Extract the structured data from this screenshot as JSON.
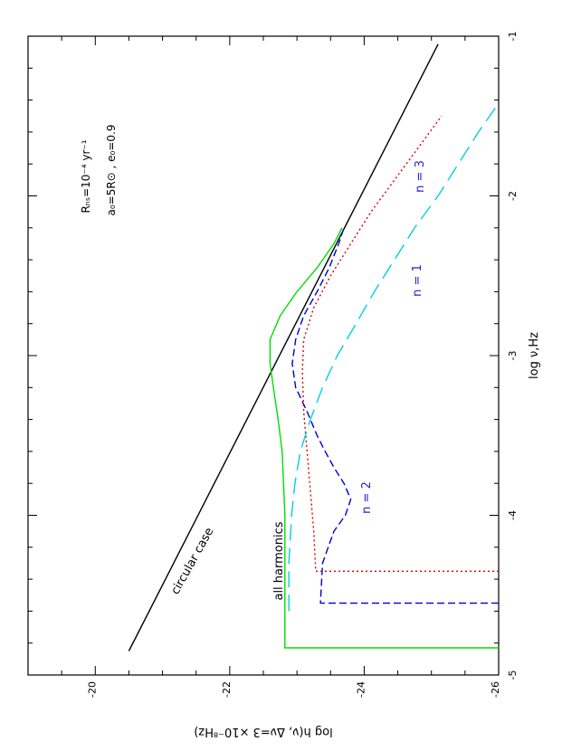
{
  "chart_data": {
    "type": "line",
    "orientation": "rotated-90-clockwise",
    "xlabel": "log ν,Hz",
    "ylabel": "log h(ν, Δν=3 ×10⁻⁸Hz)",
    "xlim": [
      -5,
      -1
    ],
    "ylim": [
      -26,
      -19
    ],
    "x_ticks": [
      "-5",
      "-4",
      "-3",
      "-2",
      "-1"
    ],
    "y_ticks": [
      "-26",
      "-24",
      "-22",
      "-20"
    ],
    "grid": false,
    "annotations": {
      "circular": "circular case",
      "all": "all harmonics",
      "n1": "n = 1",
      "n2": "n = 2",
      "n3": "n = 3",
      "param1": "Rₙₛ=10⁻⁴ yr⁻¹",
      "param2": "a₀=5R⊙ , e₀=0.9"
    },
    "series": [
      {
        "color": "#000000",
        "dash": "none",
        "x": [
          -4.85,
          -1.05
        ],
        "y": [
          -20.5,
          -25.1
        ]
      },
      {
        "color": "#00dd00",
        "dash": "none",
        "x": [
          -4.83,
          -4.83,
          -4.5,
          -4.0,
          -3.8,
          -3.6,
          -3.4,
          -3.2,
          -3.05,
          -2.9,
          -2.75,
          -2.6,
          -2.45,
          -2.3,
          -2.2
        ],
        "y": [
          -26.0,
          -22.82,
          -22.82,
          -22.82,
          -22.8,
          -22.78,
          -22.72,
          -22.65,
          -22.6,
          -22.6,
          -22.75,
          -23.0,
          -23.3,
          -23.55,
          -23.67
        ]
      },
      {
        "color": "#0000cc",
        "dash": "8,4",
        "x": [
          -4.55,
          -4.55,
          -4.3,
          -4.1,
          -4.0,
          -3.9,
          -3.8,
          -3.7,
          -3.6,
          -3.5,
          -3.35,
          -3.2,
          -3.05,
          -2.9,
          -2.75,
          -2.6,
          -2.45,
          -2.3,
          -2.2
        ],
        "y": [
          -26.0,
          -23.35,
          -23.38,
          -23.55,
          -23.72,
          -23.8,
          -23.7,
          -23.55,
          -23.42,
          -23.3,
          -23.15,
          -22.98,
          -22.93,
          -22.98,
          -23.1,
          -23.3,
          -23.48,
          -23.62,
          -23.7
        ]
      },
      {
        "color": "#dd0000",
        "dash": "2,3",
        "x": [
          -4.35,
          -4.35,
          -4.1,
          -3.85,
          -3.6,
          -3.35,
          -3.1,
          -2.9,
          -2.7,
          -2.5,
          -2.3,
          -2.1,
          -1.9,
          -1.7,
          -1.5
        ],
        "y": [
          -26.0,
          -23.28,
          -23.25,
          -23.2,
          -23.15,
          -23.1,
          -23.08,
          -23.1,
          -23.25,
          -23.5,
          -23.8,
          -24.1,
          -24.45,
          -24.8,
          -25.15
        ]
      },
      {
        "color": "#00d0e0",
        "dash": "18,8",
        "x": [
          -4.6,
          -4.3,
          -4.0,
          -3.8,
          -3.6,
          -3.4,
          -3.2,
          -3.0,
          -2.8,
          -2.6,
          -2.4,
          -2.2,
          -2.0,
          -1.8,
          -1.6,
          -1.45
        ],
        "y": [
          -22.88,
          -22.88,
          -22.92,
          -22.97,
          -23.05,
          -23.2,
          -23.38,
          -23.6,
          -23.88,
          -24.15,
          -24.45,
          -24.75,
          -25.1,
          -25.4,
          -25.7,
          -25.95
        ]
      }
    ]
  }
}
